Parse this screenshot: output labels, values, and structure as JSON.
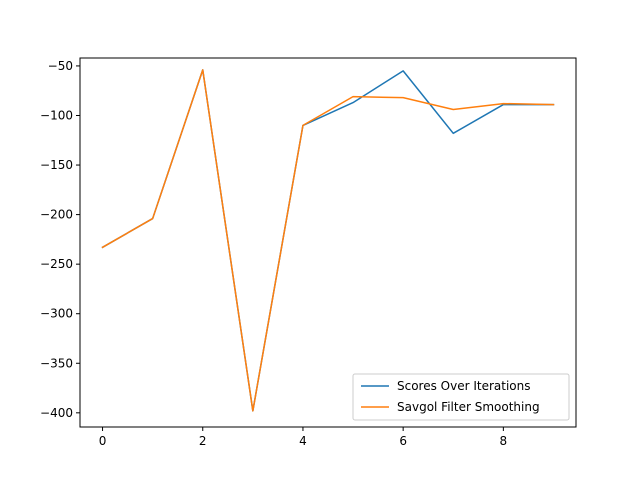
{
  "chart_data": {
    "type": "line",
    "title": "",
    "xlabel": "",
    "ylabel": "",
    "xlim": [
      -0.45,
      9.45
    ],
    "ylim": [
      -414.3,
      -42.0
    ],
    "x_ticks": [
      0,
      2,
      4,
      6,
      8
    ],
    "y_ticks": [
      -50,
      -100,
      -150,
      -200,
      -250,
      -300,
      -350,
      -400
    ],
    "x_tick_labels": [
      "0",
      "2",
      "4",
      "6",
      "8"
    ],
    "y_tick_labels": [
      "−50",
      "−100",
      "−150",
      "−200",
      "−250",
      "−300",
      "−350",
      "−400"
    ],
    "grid": false,
    "legend_position": "lower-right",
    "x": [
      0,
      1,
      2,
      3,
      4,
      5,
      6,
      7,
      8,
      9
    ],
    "series": [
      {
        "name": "Scores Over Iterations",
        "color": "#1f77b4",
        "values": [
          -233,
          -204,
          -54,
          -398,
          -110,
          -87,
          -55,
          -118,
          -89,
          -89
        ]
      },
      {
        "name": "Savgol Filter Smoothing",
        "color": "#ff7f0e",
        "values": [
          -233,
          -204,
          -54,
          -398,
          -110,
          -81,
          -82,
          -94,
          -88,
          -89
        ]
      }
    ]
  }
}
